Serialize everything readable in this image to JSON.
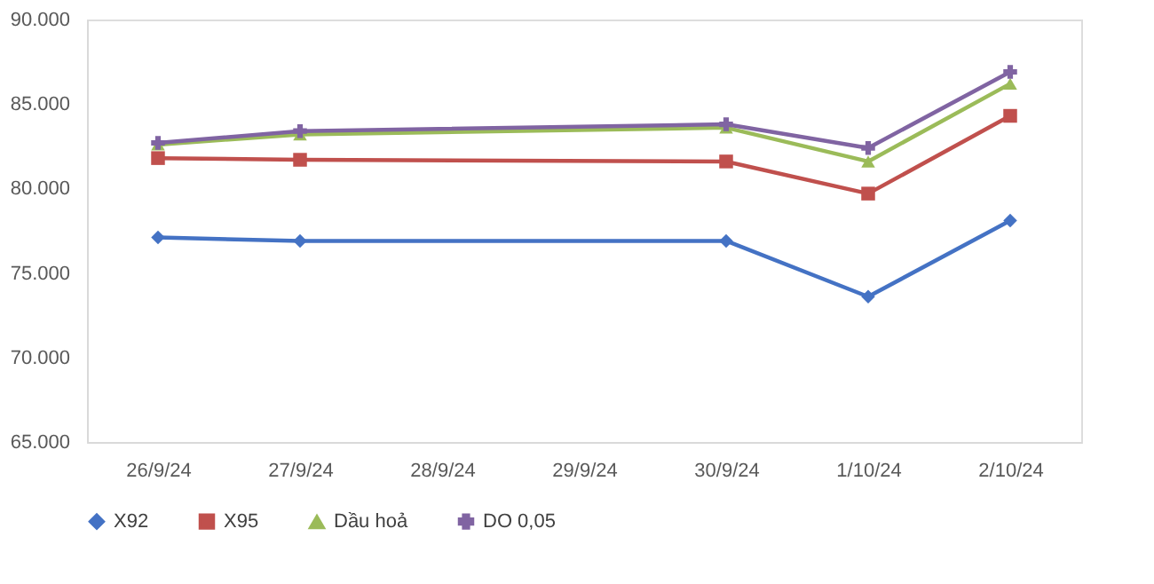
{
  "chart_data": {
    "type": "line",
    "categories": [
      "26/9/24",
      "27/9/24",
      "28/9/24",
      "29/9/24",
      "30/9/24",
      "1/10/24",
      "2/10/24"
    ],
    "ylim": [
      65000,
      90000
    ],
    "yticks": [
      {
        "value": 65000,
        "label": "65.000"
      },
      {
        "value": 70000,
        "label": "70.000"
      },
      {
        "value": 75000,
        "label": "75.000"
      },
      {
        "value": 80000,
        "label": "80.000"
      },
      {
        "value": 85000,
        "label": "85.000"
      },
      {
        "value": 90000,
        "label": "90.000"
      }
    ],
    "grid": false,
    "legend": "bottom",
    "line_style": "solid",
    "series": [
      {
        "name": "X92",
        "color": "#4472c4",
        "marker": "diamond",
        "values": [
          77100,
          76900,
          null,
          null,
          76900,
          73600,
          78100
        ]
      },
      {
        "name": "X95",
        "color": "#c0504d",
        "marker": "square",
        "values": [
          81800,
          81700,
          null,
          null,
          81600,
          79700,
          84300
        ]
      },
      {
        "name": "Dầu hoả",
        "color": "#9bbb59",
        "marker": "triangle",
        "values": [
          82600,
          83200,
          null,
          null,
          83600,
          81600,
          86200
        ]
      },
      {
        "name": "DO 0,05",
        "color": "#8064a2",
        "marker": "cross",
        "values": [
          82700,
          83400,
          null,
          null,
          83800,
          82400,
          86900
        ]
      }
    ]
  }
}
